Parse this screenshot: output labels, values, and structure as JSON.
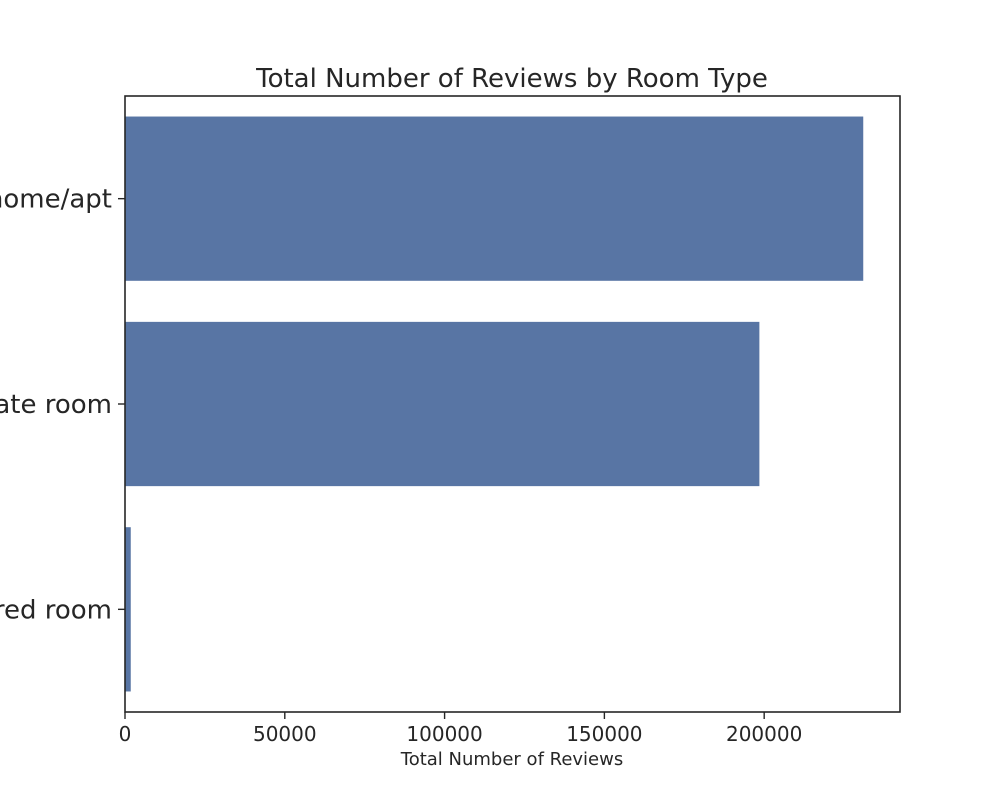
{
  "chart_data": {
    "type": "bar",
    "orientation": "horizontal",
    "title": "Total Number of Reviews by Room Type",
    "xlabel": "Total Number of Reviews",
    "ylabel": "",
    "categories": [
      "Entire home/apt",
      "Private room",
      "Shared room"
    ],
    "values": [
      231000,
      198500,
      1800
    ],
    "xlim": [
      0,
      242500
    ],
    "xticks": [
      0,
      50000,
      100000,
      150000,
      200000
    ],
    "xtick_labels": [
      "0",
      "50000",
      "100000",
      "150000",
      "200000"
    ],
    "bar_color": "#5875a4",
    "grid": false,
    "legend": "none"
  }
}
